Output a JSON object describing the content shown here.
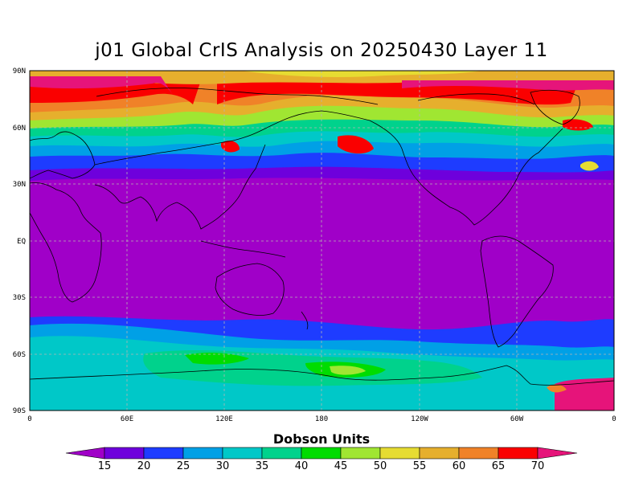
{
  "title": "j01 Global CrIS Analysis on 20250430 Layer 11",
  "lat_labels": [
    "90N",
    "60N",
    "30N",
    "EQ",
    "30S",
    "60S",
    "90S"
  ],
  "lon_labels": [
    "0",
    "60E",
    "120E",
    "180",
    "120W",
    "60W",
    "0"
  ],
  "colorbar": {
    "title": "Dobson Units",
    "tick_labels": [
      "15",
      "20",
      "25",
      "30",
      "35",
      "40",
      "45",
      "50",
      "55",
      "60",
      "65",
      "70"
    ],
    "colors": [
      "#a000c8",
      "#6e00dc",
      "#1e3cff",
      "#00a0e6",
      "#00c8c8",
      "#00d28c",
      "#00dc00",
      "#a0e632",
      "#e6dc32",
      "#e6af2d",
      "#f08228",
      "#fa0000",
      "#e6147a"
    ]
  },
  "colors": {
    "background": "#ffffff",
    "coastline": "#000000",
    "grid": "#b4b4b4"
  }
}
